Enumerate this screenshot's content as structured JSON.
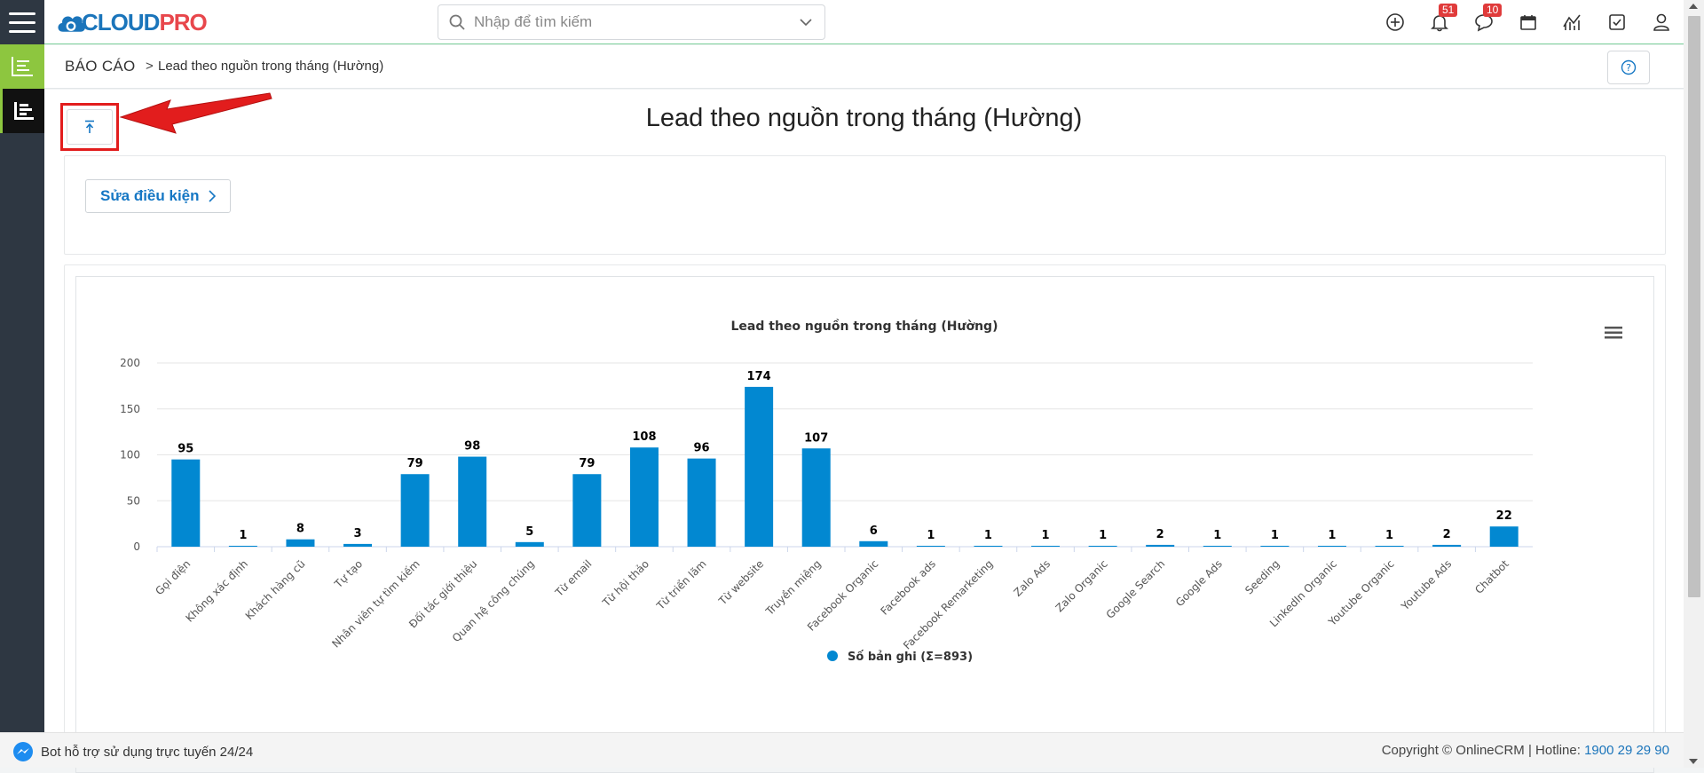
{
  "header": {
    "logo_brand_blue": "CLOUD",
    "logo_brand_red": "PRO",
    "search_placeholder": "Nhập để tìm kiếm",
    "notifications_badge": "51",
    "messages_badge": "10"
  },
  "breadcrumb": {
    "root": "BÁO CÁO",
    "separator": ">",
    "current": "Lead theo nguồn trong tháng (Hường)"
  },
  "page": {
    "title": "Lead theo nguồn trong tháng (Hường)",
    "edit_conditions_label": "Sửa điều kiện"
  },
  "chart_data": {
    "type": "bar",
    "title": "Lead theo nguồn trong tháng (Hường)",
    "categories": [
      "Gọi điện",
      "Không xác định",
      "Khách hàng cũ",
      "Tự tạo",
      "Nhân viên tự tìm kiếm",
      "Đối tác giới thiệu",
      "Quan hệ công chúng",
      "Từ email",
      "Từ hội thảo",
      "Từ triển lãm",
      "Từ website",
      "Truyền miệng",
      "Facebook Organic",
      "Facebook ads",
      "Facebook Remarketing",
      "Zalo Ads",
      "Zalo Organic",
      "Google Search",
      "Google Ads",
      "Seeding",
      "LinkedIn Organic",
      "Youtube Organic",
      "Youtube Ads",
      "Chatbot"
    ],
    "series": [
      {
        "name": "Số bản ghi (Σ=893)",
        "values": [
          95,
          1,
          8,
          3,
          79,
          98,
          5,
          79,
          108,
          96,
          174,
          107,
          6,
          1,
          1,
          1,
          1,
          2,
          1,
          1,
          1,
          1,
          2,
          22
        ]
      }
    ],
    "yticks": [
      "0",
      "50",
      "100",
      "150",
      "200"
    ],
    "ylim": [
      0,
      200
    ],
    "xlabel": "",
    "ylabel": "",
    "grid": true,
    "legend": "bottom-center",
    "bar_color": "#0288d1"
  },
  "footer": {
    "bot_text": "Bot hỗ trợ sử dụng trực tuyến 24/24",
    "copyright": "Copyright © OnlineCRM | Hotline: ",
    "hotline": "1900 29 29 90"
  },
  "colors": {
    "accent": "#1577c4",
    "rail": "#2e3742",
    "rail_active": "#8dc63f",
    "badge": "#e03b3b"
  }
}
